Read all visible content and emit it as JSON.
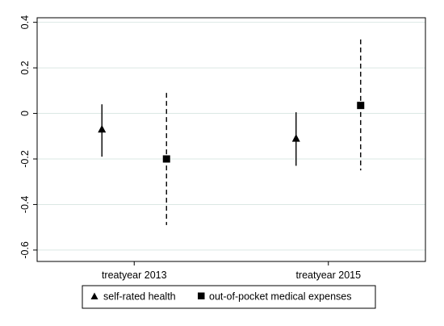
{
  "chart_data": {
    "type": "scatter",
    "subtype": "coefficient-plot-with-confidence-intervals",
    "categories": [
      "treatyear 2013",
      "treatyear 2015"
    ],
    "ylim": [
      -0.65,
      0.42
    ],
    "yticks": [
      -0.6,
      -0.4,
      -0.2,
      0,
      0.2,
      0.4
    ],
    "ytick_labels": [
      "-0.6",
      "-0.4",
      "-0.2",
      "0",
      "0.2",
      "0.4"
    ],
    "grid": true,
    "legend_position": "bottom",
    "series": [
      {
        "name": "self-rated health",
        "marker": "triangle",
        "line_style": "solid",
        "points": [
          {
            "category": "treatyear 2013",
            "estimate": -0.07,
            "ci_low": -0.19,
            "ci_high": 0.04
          },
          {
            "category": "treatyear 2015",
            "estimate": -0.11,
            "ci_low": -0.23,
            "ci_high": 0.005
          }
        ]
      },
      {
        "name": "out-of-pocket medical expenses",
        "marker": "square",
        "line_style": "dashed",
        "points": [
          {
            "category": "treatyear 2013",
            "estimate": -0.2,
            "ci_low": -0.49,
            "ci_high": 0.09
          },
          {
            "category": "treatyear 2015",
            "estimate": 0.035,
            "ci_low": -0.25,
            "ci_high": 0.325
          }
        ]
      }
    ],
    "colors": {
      "grid": "#dbe8e4",
      "ink": "#000000",
      "frame": "#000000"
    }
  }
}
